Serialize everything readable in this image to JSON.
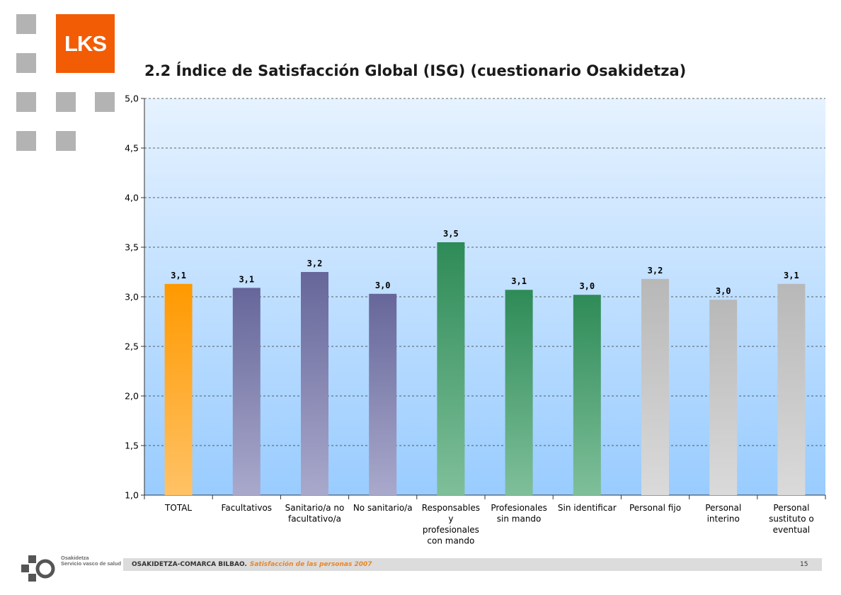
{
  "brand": {
    "logo_text": "LKS",
    "logo_color": "#f25c05"
  },
  "title": "2.2 Índice de Satisfacción Global (ISG) (cuestionario Osakidetza)",
  "chart_data": {
    "type": "bar",
    "categories": [
      [
        "TOTAL"
      ],
      [
        "Facultativos"
      ],
      [
        "Sanitario/a no",
        "facultativo/a"
      ],
      [
        "No sanitario/a"
      ],
      [
        "Responsables",
        "y",
        "profesionales",
        "con mando"
      ],
      [
        "Profesionales",
        "sin mando"
      ],
      [
        "Sin identificar"
      ],
      [
        "Personal fijo"
      ],
      [
        "Personal",
        "interino"
      ],
      [
        "Personal",
        "sustituto o",
        "eventual"
      ]
    ],
    "values": [
      3.13,
      3.09,
      3.25,
      3.03,
      3.55,
      3.07,
      3.02,
      3.18,
      2.97,
      3.13
    ],
    "data_labels": [
      "3,1",
      "3,1",
      "3,2",
      "3,0",
      "3,5",
      "3,1",
      "3,0",
      "3,2",
      "3,0",
      "3,1"
    ],
    "bar_groups": [
      "orange",
      "purple",
      "purple",
      "purple",
      "green",
      "green",
      "green",
      "gray",
      "gray",
      "gray"
    ],
    "group_colors": {
      "orange": [
        "#ff9900",
        "#ffc266"
      ],
      "purple": [
        "#66669a",
        "#a9a9cc"
      ],
      "green": [
        "#2e8b57",
        "#7fbf9a"
      ],
      "gray": [
        "#b8b8b8",
        "#dadada"
      ]
    },
    "ylim": [
      1.0,
      5.0
    ],
    "yticks": [
      "1,0",
      "1,5",
      "2,0",
      "2,5",
      "3,0",
      "3,5",
      "4,0",
      "4,5",
      "5,0"
    ],
    "grid": true,
    "background": [
      "#e6f2ff",
      "#99ccff"
    ],
    "xlabel": "",
    "ylabel": ""
  },
  "footer": {
    "org": "OSAKIDETZA-COMARCA BILBAO.",
    "subtitle": "Satisfacción de las personas 2007",
    "page": "15",
    "osakidetza_line1": "Osakidetza",
    "osakidetza_line2": "Servicio vasco de salud"
  }
}
